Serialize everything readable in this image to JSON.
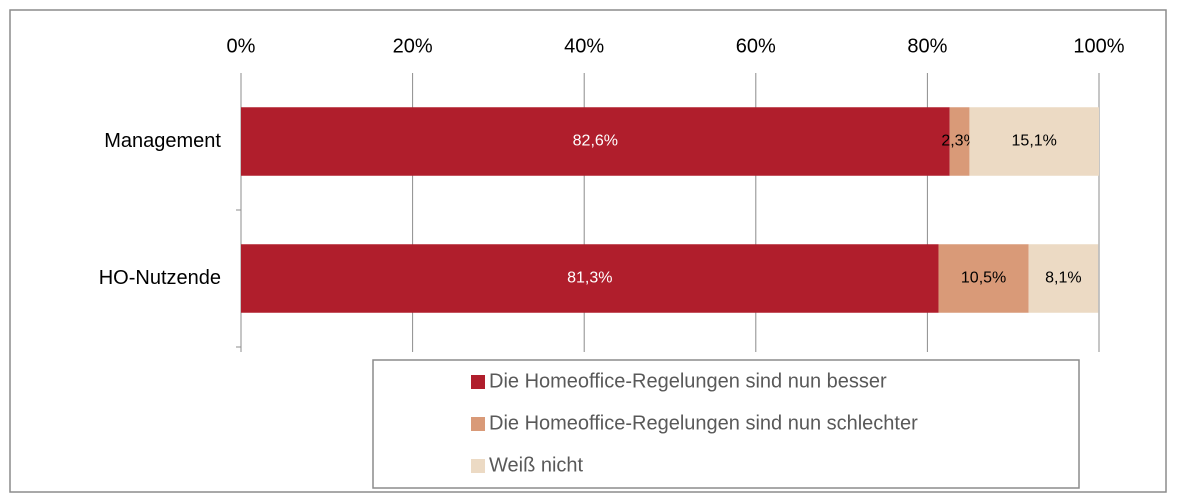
{
  "chart_data": {
    "type": "stacked_bar_horizontal",
    "categories": [
      "Management",
      "HO-Nutzende"
    ],
    "series": [
      {
        "name": "Die Homeoffice-Regelungen sind nun besser",
        "color": "#b01e2c",
        "values": [
          82.6,
          81.3
        ],
        "value_labels": [
          "82,6%",
          "81,3%"
        ]
      },
      {
        "name": "Die Homeoffice-Regelungen sind nun schlechter",
        "color": "#d99a78",
        "values": [
          2.3,
          10.5
        ],
        "value_labels": [
          "2,3%",
          "10,5%"
        ]
      },
      {
        "name": "Weiß nicht",
        "color": "#ecdac4",
        "values": [
          15.1,
          8.1
        ],
        "value_labels": [
          "15,1%",
          "8,1%"
        ]
      }
    ],
    "xlim": [
      0,
      100
    ],
    "xticks": [
      {
        "value": 0,
        "label": "0%"
      },
      {
        "value": 20,
        "label": "20%"
      },
      {
        "value": 40,
        "label": "40%"
      },
      {
        "value": 60,
        "label": "60%"
      },
      {
        "value": 80,
        "label": "80%"
      },
      {
        "value": 100,
        "label": "100%"
      }
    ],
    "grid": true,
    "legend": "bottom"
  }
}
